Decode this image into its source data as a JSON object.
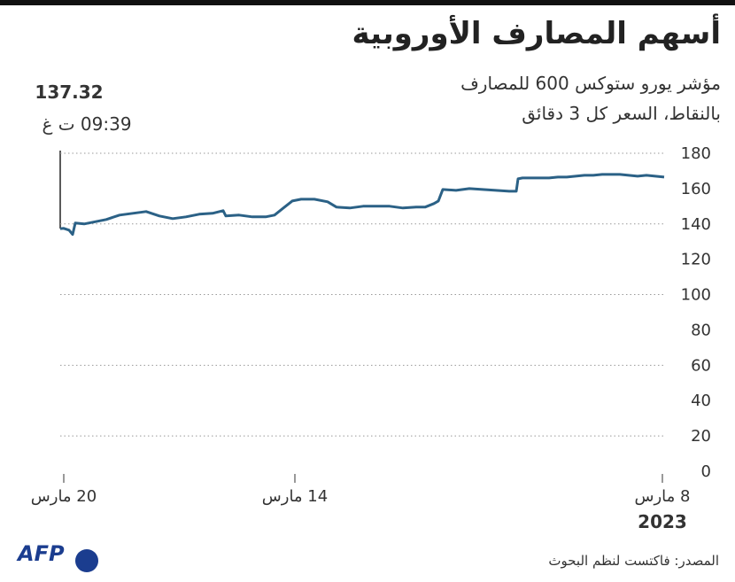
{
  "chart_data": {
    "type": "line",
    "title": "أسهم المصارف الأوروبية",
    "subtitle": [
      "مؤشر يورو ستوكس 600 للمصارف",
      "بالنقاط، السعر كل 3 دقائق"
    ],
    "annotation": {
      "value": "137.32",
      "time": "09:39 ت غ"
    },
    "year": "2023",
    "source": "المصدر:  فاكتست لنظم البحوث",
    "logo": "AFP",
    "x_reversed": true,
    "xlim": [
      0,
      68.2
    ],
    "xticks": [
      {
        "value": 0.2,
        "label": "8 مارس"
      },
      {
        "value": 41.7,
        "label": "14 مارس"
      },
      {
        "value": 67.8,
        "label": "20 مارس"
      }
    ],
    "ylim": [
      0,
      180
    ],
    "yticks": [
      0,
      20,
      40,
      60,
      80,
      100,
      120,
      140,
      160,
      180
    ],
    "grid_lines": [
      20,
      60,
      100,
      140,
      180
    ],
    "series": [
      {
        "color": "#2b6186",
        "x": [
          0,
          1,
          2,
          3,
          4,
          5,
          6,
          7,
          8,
          9,
          10,
          11,
          12,
          13,
          14,
          15,
          16,
          16.5,
          16.7,
          17.5,
          19,
          20.5,
          22,
          23.5,
          25,
          25.5,
          26,
          27,
          28,
          29.5,
          31,
          32.5,
          34,
          35.5,
          37,
          38,
          39.5,
          41,
          42,
          43,
          44,
          45,
          46.5,
          48,
          49.5,
          49.8,
          51,
          52.5,
          54,
          55.5,
          57,
          58.5,
          60,
          61.5,
          63,
          64.5,
          65.5,
          66.5,
          66.8,
          67.2,
          67.8,
          68.2
        ],
        "values": [
          166.5,
          167,
          167.5,
          167,
          167.5,
          168,
          168,
          168,
          167.5,
          167.5,
          167,
          166.5,
          166.5,
          166,
          166,
          166,
          166,
          165.5,
          158.5,
          158.5,
          159,
          159.5,
          160,
          159,
          159.5,
          153,
          151.5,
          149.5,
          149.5,
          149,
          150,
          150,
          150,
          149,
          149.5,
          152.5,
          154,
          154,
          153,
          149,
          145,
          144,
          144,
          145,
          144.5,
          147.5,
          146,
          145.5,
          144,
          143,
          144.5,
          147,
          146,
          145,
          142.5,
          141,
          140,
          140.5,
          134,
          136.5,
          137.5,
          137.32
        ]
      }
    ]
  }
}
